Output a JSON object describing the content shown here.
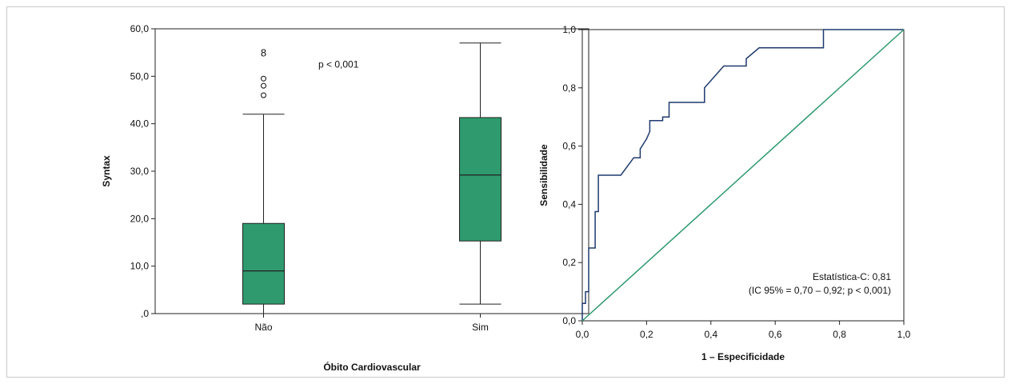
{
  "chart_data": [
    {
      "type": "boxplot",
      "title": "",
      "xlabel": "Óbito Cardiovascular",
      "ylabel": "Syntax",
      "ylim": [
        0,
        60
      ],
      "yticks": [
        0,
        10,
        20,
        30,
        40,
        50,
        60
      ],
      "ytick_labels": [
        ",0",
        "10,0",
        "20,0",
        "30,0",
        "40,0",
        "50,0",
        "60,0"
      ],
      "categories": [
        "Não",
        "Sim"
      ],
      "boxes": [
        {
          "name": "Não",
          "min": 0,
          "q1": 2,
          "median": 9,
          "q3": 19,
          "max": 42,
          "outliers": [
            46,
            48,
            49.5
          ],
          "outlier_markers": [
            {
              "label": "8",
              "value": 55
            }
          ]
        },
        {
          "name": "Sim",
          "min": 2,
          "q1": 15.3,
          "median": 29.2,
          "q3": 41.3,
          "max": 57,
          "outliers": [],
          "outlier_markers": []
        }
      ],
      "annotation": "p < 0,001",
      "box_color": "#2e9a6e",
      "grid": false
    },
    {
      "type": "line",
      "title": "",
      "xlabel": "1 – Especificidade",
      "ylabel": "Sensibilidade",
      "xlim": [
        0,
        1
      ],
      "ylim": [
        0,
        1
      ],
      "ticks": [
        0,
        0.2,
        0.4,
        0.6,
        0.8,
        1.0
      ],
      "tick_labels": [
        "0,0",
        "0,2",
        "0,4",
        "0,6",
        "0,8",
        "1,0"
      ],
      "series": [
        {
          "color": "#1f3a6e",
          "x": [
            0,
            0,
            0.01,
            0.01,
            0.02,
            0.02,
            0.03,
            0.03,
            0.04,
            0.04,
            0.05,
            0.05,
            0.12,
            0.12,
            0.16,
            0.16,
            0.18,
            0.18,
            0.2,
            0.2,
            0.21,
            0.21,
            0.25,
            0.25,
            0.27,
            0.27,
            0.38,
            0.38,
            0.44,
            0.44,
            0.51,
            0.51,
            0.55,
            0.55,
            0.75,
            0.75,
            1
          ],
          "y": [
            0,
            0.06,
            0.06,
            0.1,
            0.1,
            0.25,
            0.25,
            0.25,
            0.25,
            0.375,
            0.375,
            0.5,
            0.5,
            0.5,
            0.56,
            0.56,
            0.56,
            0.59,
            0.625,
            0.625,
            0.65,
            0.6875,
            0.6875,
            0.7,
            0.7,
            0.75,
            0.75,
            0.8,
            0.875,
            0.875,
            0.875,
            0.9,
            0.9375,
            0.9375,
            0.9375,
            1,
            1
          ]
        },
        {
          "color": "#2e9a6e",
          "x": [
            0,
            1
          ],
          "y": [
            0,
            1
          ]
        }
      ],
      "annotation_lines": [
        "Estatística-C: 0,81",
        "(IC 95% = 0,70 – 0,92; p < 0,001)"
      ],
      "grid": false
    }
  ]
}
